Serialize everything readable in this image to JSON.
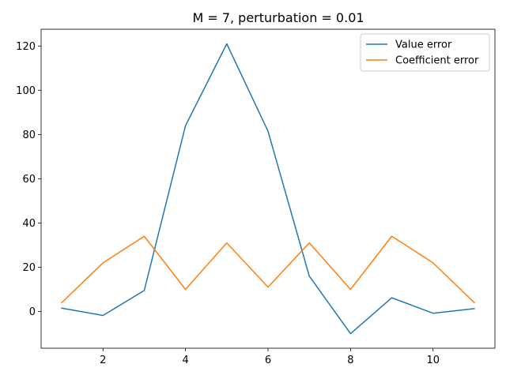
{
  "chart_data": {
    "type": "line",
    "title": "M = 7, perturbation = 0.01",
    "xlabel": "",
    "ylabel": "",
    "x": [
      1,
      2,
      3,
      4,
      5,
      6,
      7,
      8,
      9,
      10,
      11
    ],
    "series": [
      {
        "name": "Value error",
        "color": "#1f77b4",
        "values": [
          1.5,
          -1.8,
          9.5,
          84.0,
          121.0,
          81.5,
          16.0,
          -10.0,
          6.2,
          -0.8,
          1.3
        ]
      },
      {
        "name": "Coefficient error",
        "color": "#ff7f0e",
        "values": [
          4.0,
          22.0,
          34.0,
          10.0,
          31.0,
          11.0,
          31.0,
          10.0,
          34.0,
          22.0,
          4.0
        ]
      }
    ],
    "xlim": [
      0.5,
      11.5
    ],
    "ylim": [
      -16.6,
      127.6
    ],
    "xticks": [
      2,
      4,
      6,
      8,
      10
    ],
    "yticks": [
      0,
      20,
      40,
      60,
      80,
      100,
      120
    ],
    "grid": false,
    "legend_position": "top-right"
  }
}
